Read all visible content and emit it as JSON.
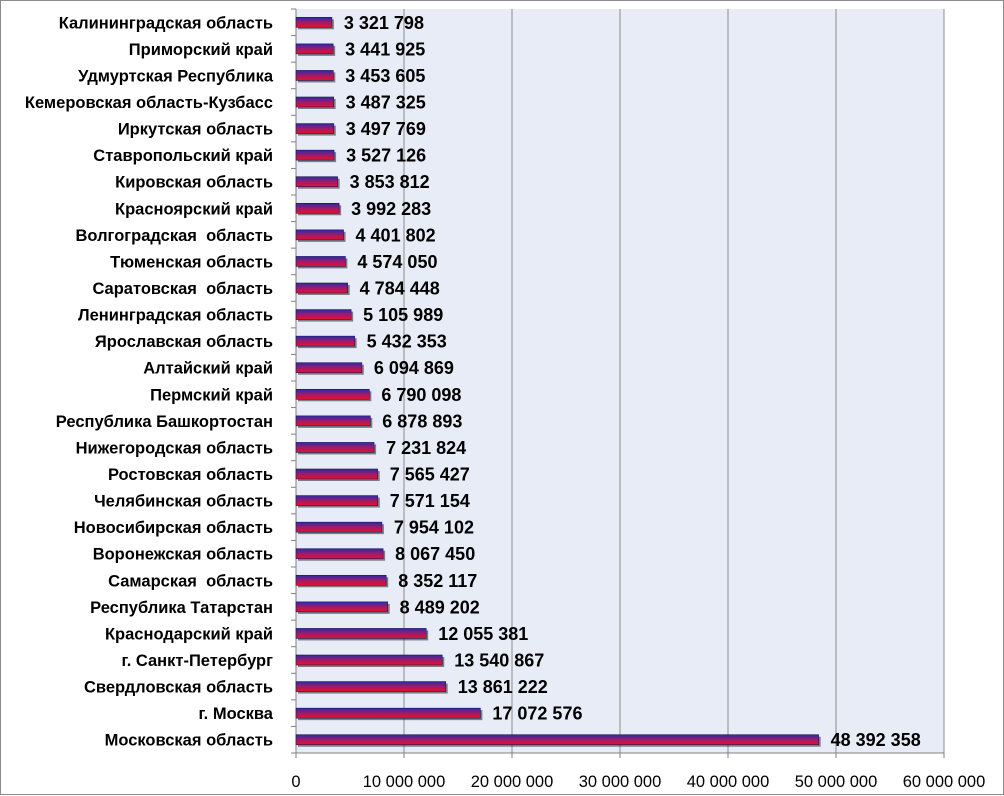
{
  "chart_data": {
    "type": "bar",
    "orientation": "horizontal",
    "categories": [
      "Калининградская область",
      "Приморский край",
      "Удмуртская Республика",
      "Кемеровская область-Кузбасс",
      "Иркутская область",
      "Ставропольский край",
      "Кировская область",
      "Красноярский край",
      "Волгоградская  область",
      "Тюменская область",
      "Саратовская  область",
      "Ленинградская область",
      "Ярославская область",
      "Алтайский край",
      "Пермский край",
      "Республика Башкортостан",
      "Нижегородская область",
      "Ростовская область",
      "Челябинская область",
      "Новосибирская область",
      "Воронежская область",
      "Самарская  область",
      "Республика Татарстан",
      "Краснодарский край",
      "г. Санкт-Петербург",
      "Свердловская область",
      "г. Москва",
      "Московская область"
    ],
    "values": [
      3321798,
      3441925,
      3453605,
      3487325,
      3497769,
      3527126,
      3853812,
      3992283,
      4401802,
      4574050,
      4784448,
      5105989,
      5432353,
      6094869,
      6790098,
      6878893,
      7231824,
      7565427,
      7571154,
      7954102,
      8067450,
      8352117,
      8489202,
      12055381,
      13540867,
      13861222,
      17072576,
      48392358
    ],
    "value_labels": [
      "3 321 798",
      "3 441 925",
      "3 453 605",
      "3 487 325",
      "3 497 769",
      "3 527 126",
      "3 853 812",
      "3 992 283",
      "4 401 802",
      "4 574 050",
      "4 784 448",
      "5 105 989",
      "5 432 353",
      "6 094 869",
      "6 790 098",
      "6 878 893",
      "7 231 824",
      "7 565 427",
      "7 571 154",
      "7 954 102",
      "8 067 450",
      "8 352 117",
      "8 489 202",
      "12 055 381",
      "13 540 867",
      "13 861 222",
      "17 072 576",
      "48 392 358"
    ],
    "xlim": [
      0,
      60000000
    ],
    "xticks": [
      0,
      10000000,
      20000000,
      30000000,
      40000000,
      50000000,
      60000000
    ],
    "xtick_labels": [
      "0",
      "10 000 000",
      "20 000 000",
      "30 000 000",
      "40 000 000",
      "50 000 000",
      "60 000 000"
    ],
    "title": "",
    "xlabel": "",
    "ylabel": "",
    "grid": "vertical",
    "legend": "none",
    "colors": {
      "plot_background": "#e8ecf6",
      "gridline": "#8c8c8c",
      "bar_top": "#2a2aa8",
      "bar_middle": "#a01a6a",
      "bar_bottom": "#e8102a",
      "bar_shadow": "#222222"
    }
  }
}
